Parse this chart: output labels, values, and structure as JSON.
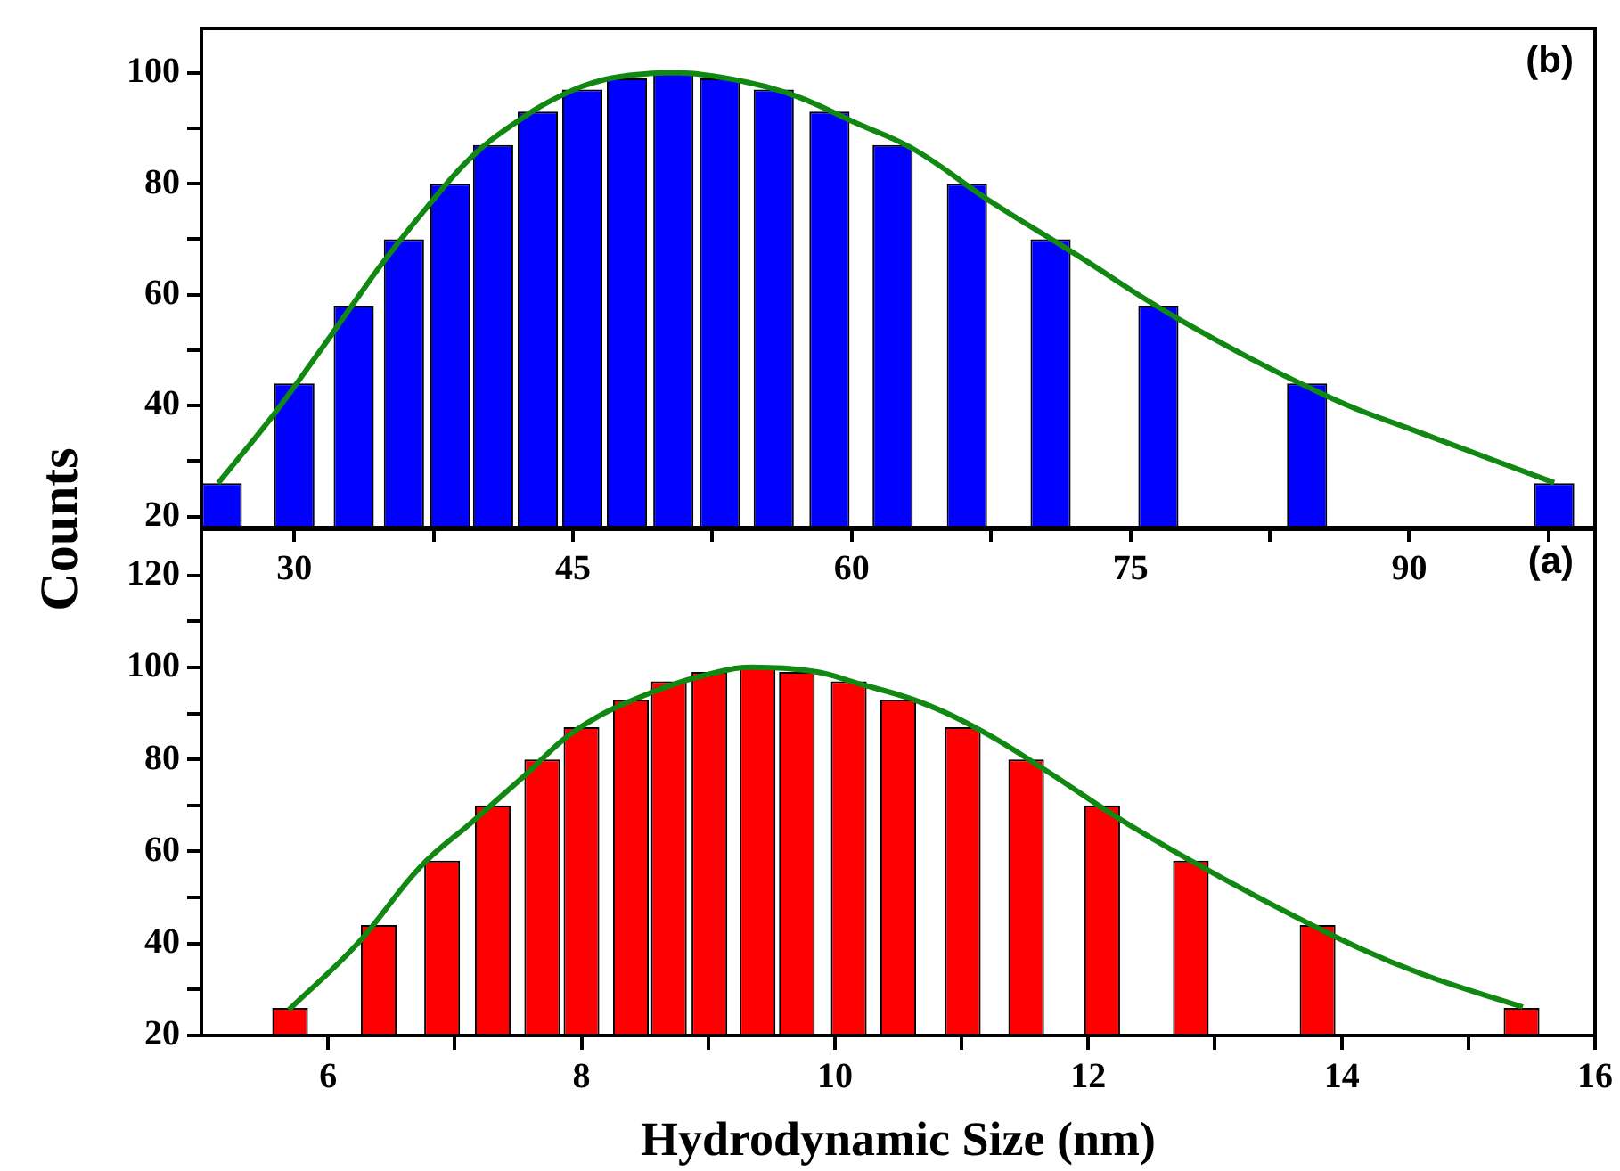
{
  "chart_data": [
    {
      "type": "bar",
      "ylabel": "Counts",
      "annotations": [
        "(b)"
      ],
      "grid": false,
      "legend": false,
      "marker": "none",
      "xlim": [
        25,
        100
      ],
      "xticks": [
        30,
        {
          "value": 37.5,
          "label": null
        },
        45,
        {
          "value": 52.5,
          "label": null
        },
        60,
        {
          "value": 67.5,
          "label": null
        },
        75,
        {
          "value": 82.5,
          "label": null
        },
        90,
        {
          "value": 97.5,
          "label": null
        }
      ],
      "ylim": [
        18,
        108
      ],
      "yticks": [
        20,
        {
          "value": 30,
          "label": null
        },
        40,
        {
          "value": 50,
          "label": null
        },
        60,
        {
          "value": 70,
          "label": null
        },
        80,
        {
          "value": 90,
          "label": null
        },
        100
      ],
      "series": [
        {
          "color": "#0000ff",
          "x": [
            26.1,
            30.0,
            33.2,
            35.9,
            38.4,
            40.7,
            43.1,
            45.5,
            47.9,
            50.4,
            52.9,
            55.8,
            58.8,
            62.2,
            66.2,
            70.7,
            76.5,
            84.5,
            97.8
          ],
          "values": [
            26,
            44,
            58,
            70,
            80,
            87,
            93,
            97,
            99,
            100,
            99,
            97,
            93,
            87,
            80,
            70,
            58,
            44,
            26
          ]
        },
        {
          "type": "line",
          "color": "#118811",
          "x": [
            25.9,
            28.8,
            31.2,
            33.1,
            34.7,
            37.1,
            39.5,
            41.9,
            44.3,
            46.7,
            49.1,
            50.5,
            51.7,
            54.1,
            57.0,
            60.2,
            63.4,
            67.3,
            71.9,
            77.7,
            85.7,
            90.6,
            97.8
          ],
          "values": [
            26,
            38,
            49,
            58,
            65.5,
            75.6,
            84.7,
            91,
            95.8,
            98.8,
            99.9,
            100,
            99.8,
            98.5,
            95.8,
            91,
            86.1,
            77.2,
            67.6,
            55.4,
            41.5,
            35.1,
            26.1
          ]
        }
      ]
    },
    {
      "type": "bar",
      "xlabel": "Hydrodynamic Size (nm)",
      "annotations": [
        "(a)"
      ],
      "grid": false,
      "legend": false,
      "marker": "none",
      "xlim": [
        5,
        16
      ],
      "xticks": [
        6,
        {
          "value": 7,
          "label": null
        },
        8,
        {
          "value": 9,
          "label": null
        },
        10,
        {
          "value": 11,
          "label": null
        },
        12,
        {
          "value": 13,
          "label": null
        },
        14,
        {
          "value": 15,
          "label": null
        },
        16
      ],
      "ylim": [
        20,
        130
      ],
      "yticks": [
        20,
        {
          "value": 30,
          "label": null
        },
        40,
        {
          "value": 50,
          "label": null
        },
        60,
        {
          "value": 70,
          "label": null
        },
        80,
        {
          "value": 90,
          "label": null
        },
        100,
        {
          "value": 110,
          "label": null
        },
        120
      ],
      "series": [
        {
          "color": "#ff0000",
          "x": [
            5.7,
            6.4,
            6.9,
            7.3,
            7.69,
            8.0,
            8.39,
            8.69,
            9.01,
            9.39,
            9.7,
            10.11,
            10.5,
            11.01,
            11.51,
            12.11,
            12.81,
            13.81,
            15.42
          ],
          "values": [
            26,
            44,
            58,
            70,
            80,
            87,
            93,
            97,
            99,
            100,
            99,
            97,
            93,
            87,
            80,
            70,
            58,
            44,
            26
          ]
        },
        {
          "type": "line",
          "color": "#118811",
          "x": [
            5.69,
            6.23,
            6.73,
            7.14,
            7.54,
            7.97,
            8.54,
            9.14,
            9.42,
            9.86,
            10.17,
            10.67,
            11.17,
            11.67,
            12.28,
            12.98,
            13.97,
            14.63,
            15.43
          ],
          "values": [
            25.6,
            39.9,
            56.7,
            66.5,
            76.2,
            86.6,
            94.4,
            99.4,
            100,
            99,
            96.6,
            92.5,
            86,
            77.5,
            66.5,
            55.4,
            41.2,
            33.4,
            26.2
          ]
        }
      ]
    }
  ]
}
